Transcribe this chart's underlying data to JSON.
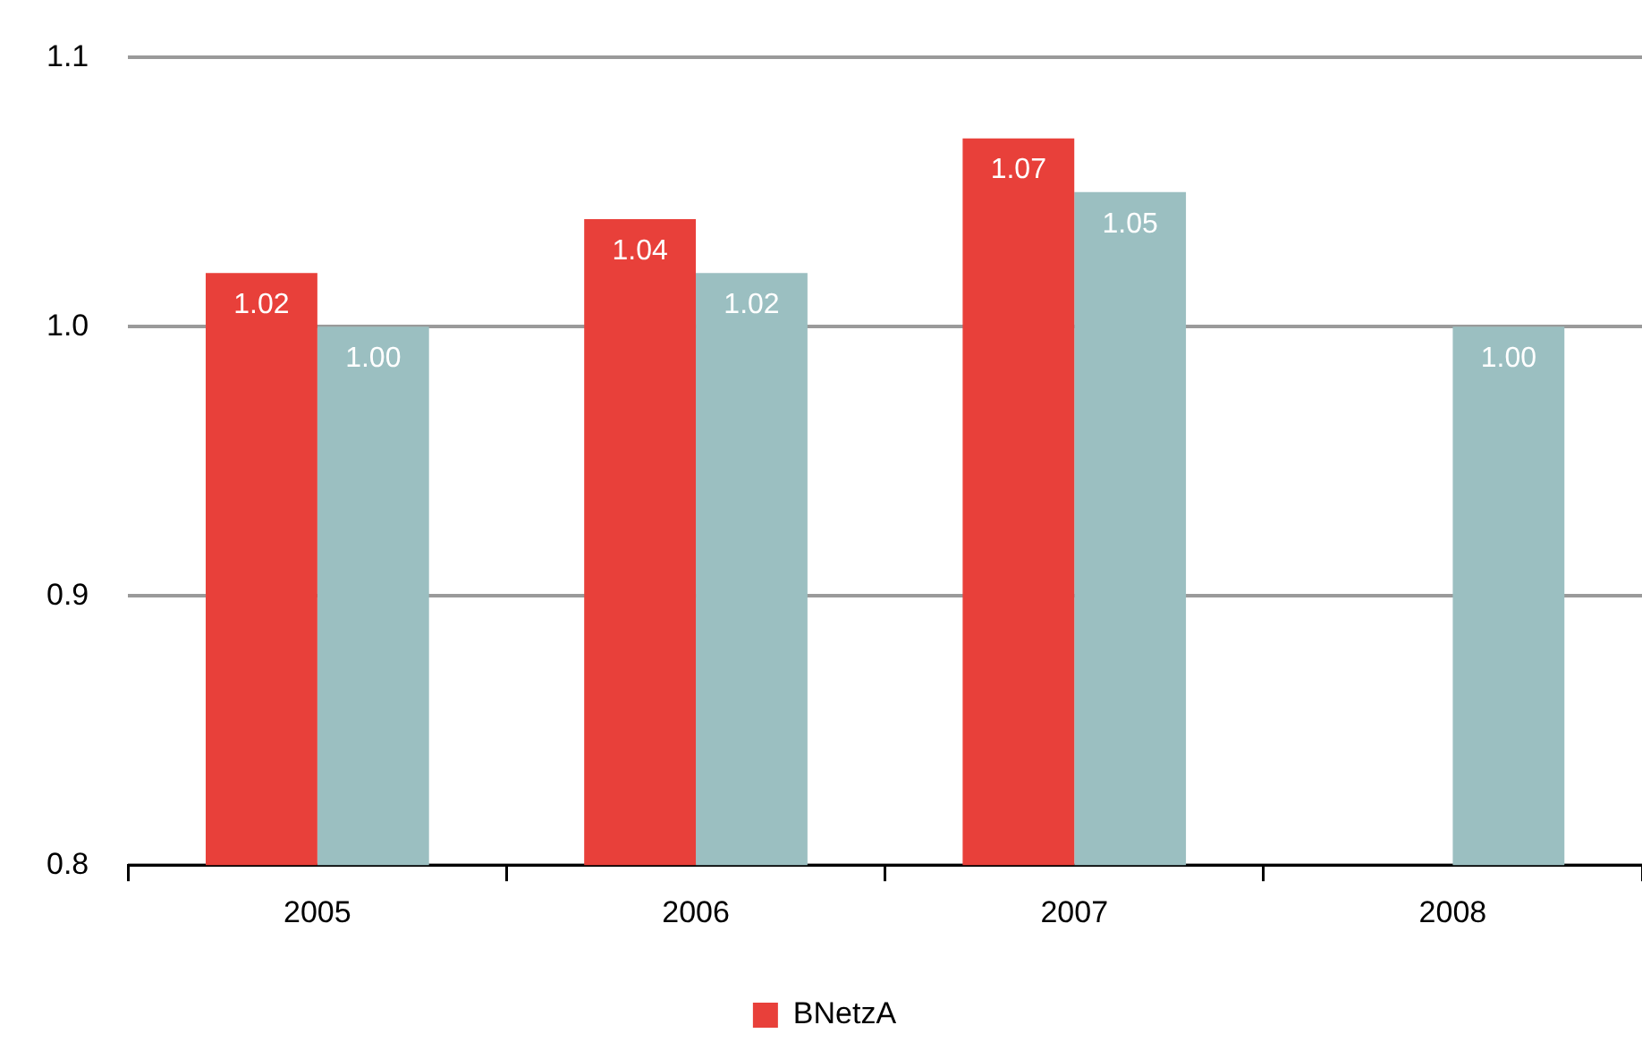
{
  "chart_data": {
    "type": "bar",
    "categories": [
      "2005",
      "2006",
      "2007",
      "2008"
    ],
    "series": [
      {
        "name": "BNetzA",
        "color": "#e8403a",
        "values": [
          1.02,
          1.04,
          1.07,
          null
        ],
        "value_labels": [
          "1.02",
          "1.04",
          "1.07",
          null
        ]
      },
      {
        "color": "#9bbfc1",
        "values": [
          1.0,
          1.02,
          1.05,
          1.0
        ],
        "value_labels": [
          "1.00",
          "1.02",
          "1.05",
          "1.00"
        ]
      }
    ],
    "ylim": [
      0.8,
      1.1
    ],
    "yticks": [
      0.8,
      0.9,
      {
        "value": 1.0,
        "label": "1.0"
      },
      1.1
    ],
    "grid": "y",
    "legend": "bottom"
  }
}
